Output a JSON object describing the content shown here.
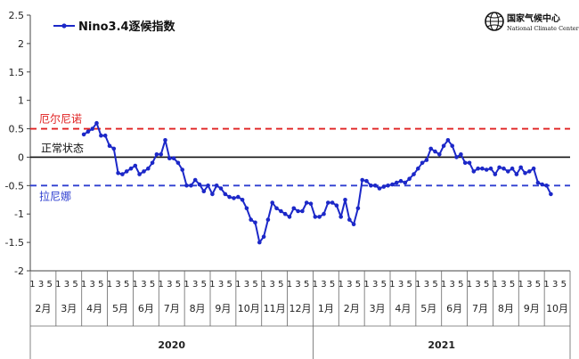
{
  "chart_data": {
    "type": "line",
    "title": "",
    "xlabel": "",
    "ylabel": "",
    "ylim": [
      -2,
      2.5
    ],
    "yticks": [
      "-2",
      "-1.5",
      "-1",
      "-0.5",
      "0",
      "0.5",
      "1",
      "1.5",
      "2",
      "2.5"
    ],
    "legend": {
      "label": "Nino3.4逐候指数",
      "placement": "top-left"
    },
    "series": [
      {
        "name": "Nino3.4逐候指数",
        "color": "#1c28c8",
        "values": [
          0.4,
          0.45,
          0.5,
          0.6,
          0.38,
          0.38,
          0.2,
          0.15,
          -0.28,
          -0.3,
          -0.25,
          -0.2,
          -0.15,
          -0.3,
          -0.25,
          -0.2,
          -0.1,
          0.05,
          0.05,
          0.3,
          -0.02,
          -0.02,
          -0.1,
          -0.22,
          -0.5,
          -0.5,
          -0.4,
          -0.48,
          -0.6,
          -0.5,
          -0.65,
          -0.5,
          -0.55,
          -0.65,
          -0.7,
          -0.72,
          -0.7,
          -0.75,
          -0.9,
          -1.1,
          -1.15,
          -1.5,
          -1.4,
          -1.1,
          -0.8,
          -0.9,
          -0.95,
          -1.0,
          -1.05,
          -0.9,
          -0.95,
          -0.95,
          -0.8,
          -0.82,
          -1.05,
          -1.05,
          -1.0,
          -0.8,
          -0.8,
          -0.85,
          -1.05,
          -0.75,
          -1.1,
          -1.18,
          -0.9,
          -0.4,
          -0.42,
          -0.5,
          -0.5,
          -0.55,
          -0.52,
          -0.5,
          -0.48,
          -0.45,
          -0.42,
          -0.45,
          -0.38,
          -0.3,
          -0.2,
          -0.1,
          -0.05,
          0.15,
          0.1,
          0.05,
          0.2,
          0.3,
          0.2,
          0.0,
          0.05,
          -0.1,
          -0.1,
          -0.25,
          -0.2,
          -0.2,
          -0.22,
          -0.2,
          -0.3,
          -0.18,
          -0.2,
          -0.25,
          -0.2,
          -0.3,
          -0.18,
          -0.28,
          -0.25,
          -0.2,
          -0.45,
          -0.48,
          -0.5,
          -0.65
        ]
      }
    ],
    "reference_lines": [
      {
        "value": 0.5,
        "label": "厄尔尼诺",
        "color": "#e02020",
        "style": "dashed"
      },
      {
        "value": 0,
        "label": "正常状态",
        "color": "#111111",
        "style": "solid"
      },
      {
        "value": -0.5,
        "label": "拉尼娜",
        "color": "#2f3fd0",
        "style": "dashed"
      }
    ],
    "pentad_labels": [
      "1",
      "3",
      "5"
    ],
    "months": [
      {
        "label": "2月",
        "year": "2020"
      },
      {
        "label": "3月",
        "year": "2020"
      },
      {
        "label": "4月",
        "year": "2020"
      },
      {
        "label": "5月",
        "year": "2020"
      },
      {
        "label": "6月",
        "year": "2020"
      },
      {
        "label": "7月",
        "year": "2020"
      },
      {
        "label": "8月",
        "year": "2020"
      },
      {
        "label": "9月",
        "year": "2020"
      },
      {
        "label": "10月",
        "year": "2020"
      },
      {
        "label": "11月",
        "year": "2020"
      },
      {
        "label": "12月",
        "year": "2020"
      },
      {
        "label": "1月",
        "year": "2021"
      },
      {
        "label": "2月",
        "year": "2021"
      },
      {
        "label": "3月",
        "year": "2021"
      },
      {
        "label": "4月",
        "year": "2021"
      },
      {
        "label": "5月",
        "year": "2021"
      },
      {
        "label": "6月",
        "year": "2021"
      },
      {
        "label": "7月",
        "year": "2021"
      },
      {
        "label": "8月",
        "year": "2021"
      },
      {
        "label": "9月",
        "year": "2021"
      },
      {
        "label": "10月",
        "year": "2021"
      }
    ],
    "years": [
      "2020",
      "2021"
    ]
  },
  "logo": {
    "name_cn": "国家气候中心",
    "name_en": "National Climate Center",
    "emblem_icon": "globe-emblem-icon"
  }
}
